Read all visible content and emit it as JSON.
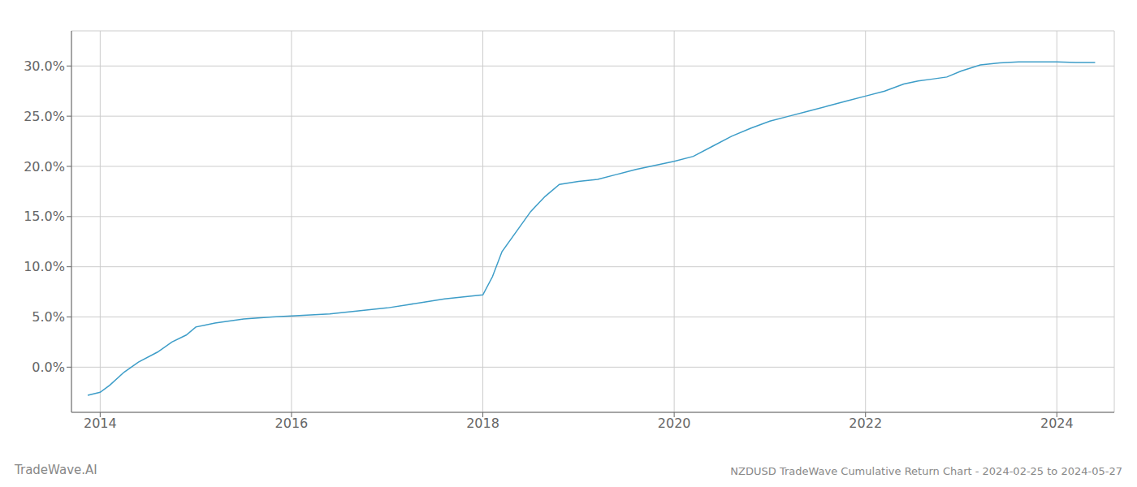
{
  "chart_data": {
    "type": "line",
    "title": "NZDUSD TradeWave Cumulative Return Chart - 2024-02-25 to 2024-05-27",
    "annotations": [
      "TradeWave.AI"
    ],
    "color": "#3d9dc8",
    "grid": true,
    "x": [
      2013.87,
      2014.0,
      2014.1,
      2014.25,
      2014.4,
      2014.6,
      2014.75,
      2014.9,
      2015.0,
      2015.1,
      2015.2,
      2015.35,
      2015.5,
      2015.65,
      2015.8,
      2016.0,
      2016.2,
      2016.4,
      2016.6,
      2016.8,
      2017.0,
      2017.2,
      2017.4,
      2017.6,
      2017.8,
      2018.0,
      2018.1,
      2018.2,
      2018.35,
      2018.5,
      2018.65,
      2018.8,
      2019.0,
      2019.2,
      2019.4,
      2019.6,
      2019.8,
      2019.9,
      2020.0,
      2020.2,
      2020.4,
      2020.6,
      2020.8,
      2021.0,
      2021.2,
      2021.4,
      2021.6,
      2021.8,
      2022.0,
      2022.2,
      2022.4,
      2022.55,
      2022.7,
      2022.85,
      2023.0,
      2023.2,
      2023.4,
      2023.6,
      2023.8,
      2024.0,
      2024.2,
      2024.4
    ],
    "values": [
      -2.8,
      -2.5,
      -1.8,
      -0.5,
      0.5,
      1.5,
      2.5,
      3.2,
      4.0,
      4.2,
      4.4,
      4.6,
      4.8,
      4.9,
      5.0,
      5.1,
      5.2,
      5.3,
      5.5,
      5.7,
      5.9,
      6.2,
      6.5,
      6.8,
      7.0,
      7.2,
      9.0,
      11.5,
      13.5,
      15.5,
      17.0,
      18.2,
      18.5,
      18.7,
      19.2,
      19.7,
      20.1,
      20.3,
      20.5,
      21.0,
      22.0,
      23.0,
      23.8,
      24.5,
      25.0,
      25.5,
      26.0,
      26.5,
      27.0,
      27.5,
      28.2,
      28.5,
      28.7,
      28.9,
      29.5,
      30.1,
      30.3,
      30.4,
      30.4,
      30.4,
      30.35,
      30.35
    ],
    "xlim": [
      2013.7,
      2024.6
    ],
    "ylim": [
      -4.5,
      33.5
    ],
    "xticks": [
      2014,
      2016,
      2018,
      2020,
      2022,
      2024
    ],
    "yticks": [
      {
        "value": 0.0,
        "label": "0.0%"
      },
      {
        "value": 5.0,
        "label": "5.0%"
      },
      {
        "value": 10.0,
        "label": "10.0%"
      },
      {
        "value": 15.0,
        "label": "15.0%"
      },
      {
        "value": 20.0,
        "label": "20.0%"
      },
      {
        "value": 25.0,
        "label": "25.0%"
      },
      {
        "value": 30.0,
        "label": "30.0%"
      }
    ]
  }
}
